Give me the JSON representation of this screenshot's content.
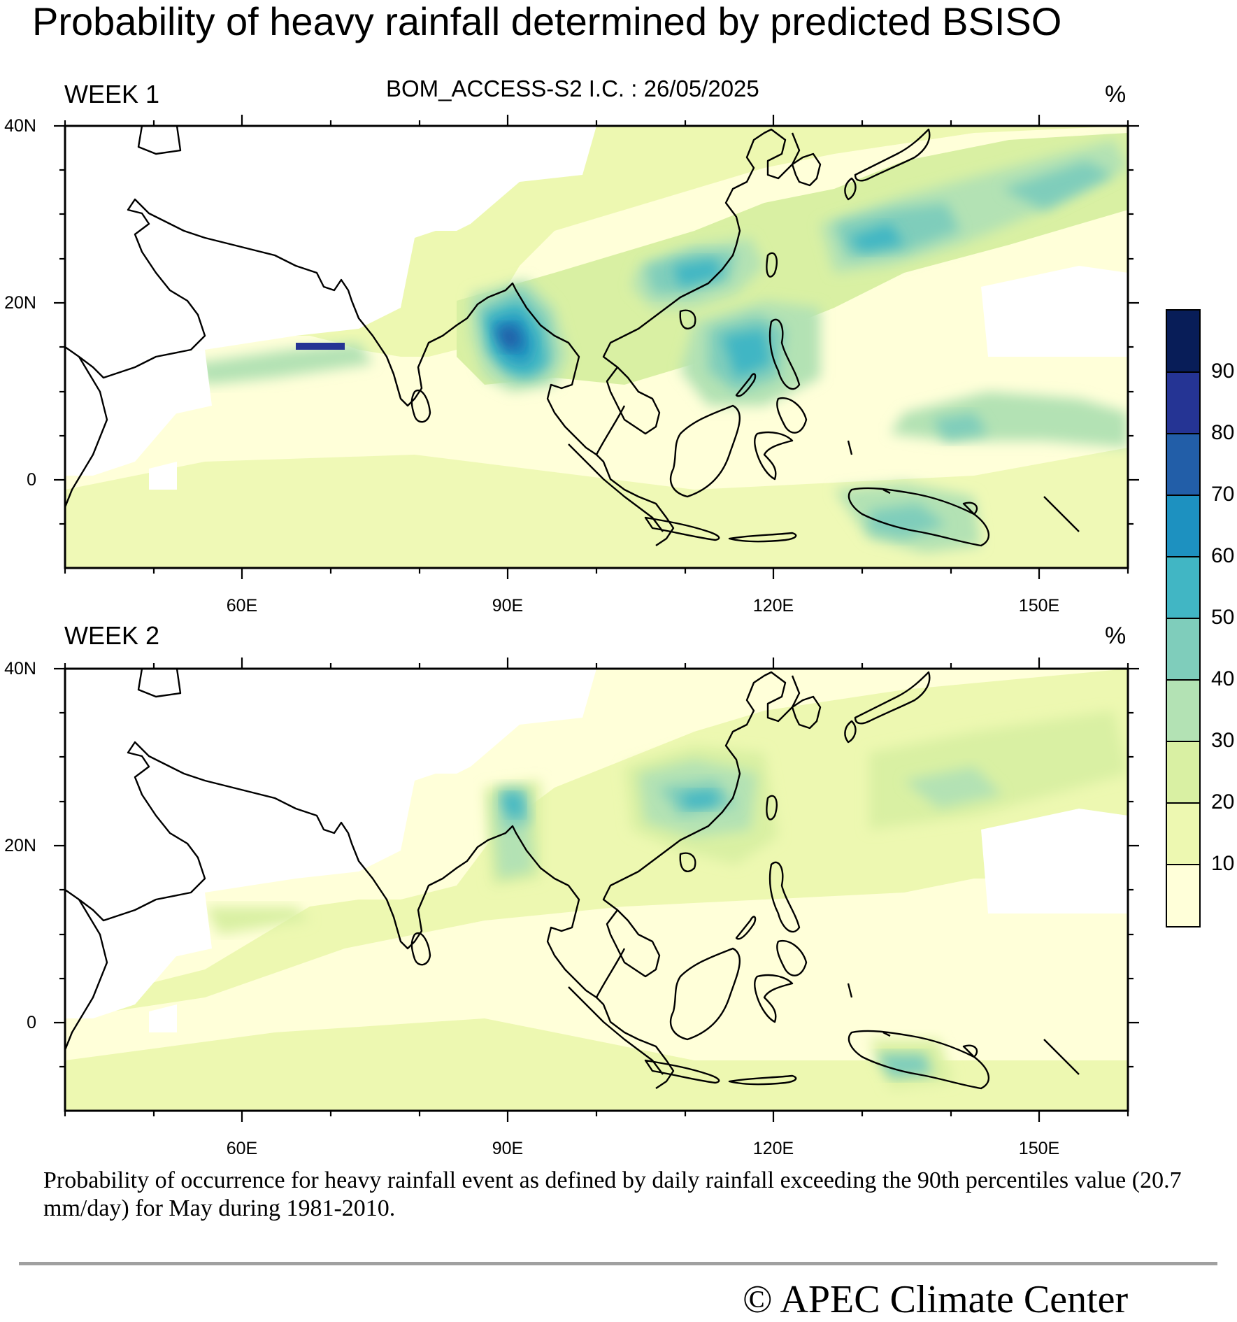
{
  "title": "Probability of heavy rainfall determined by predicted BSISO",
  "subtitle": "BOM_ACCESS-S2  I.C. : 26/05/2025",
  "panels": [
    {
      "label": "WEEK 1",
      "unit": "%"
    },
    {
      "label": "WEEK 2",
      "unit": "%"
    }
  ],
  "lat_labels": [
    "40N",
    "20N",
    "0"
  ],
  "lon_labels": [
    "60E",
    "90E",
    "120E",
    "150E"
  ],
  "colorbar": {
    "labels": [
      "10",
      "20",
      "30",
      "40",
      "50",
      "60",
      "70",
      "80",
      "90"
    ],
    "colors": [
      "#ffffd9",
      "#edf8b1",
      "#d9f0a3",
      "#b3e2b4",
      "#7fcdbb",
      "#41b6c4",
      "#1d91c0",
      "#225ea8",
      "#253494",
      "#081d58"
    ]
  },
  "caption": "Probability of occurrence for heavy rainfall event as defined by daily rainfall exceeding the 90th percentiles value (20.7 mm/day) for May during 1981-2010.",
  "copyright": "© APEC Climate Center"
}
